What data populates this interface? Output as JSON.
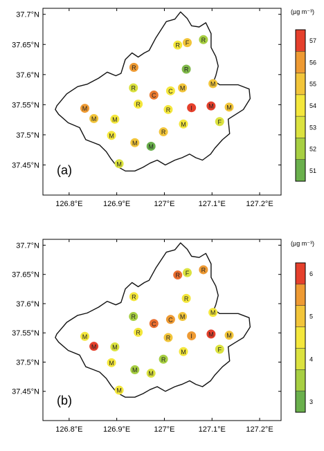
{
  "panels": [
    {
      "label": "(a)",
      "legend_title": "(µg m⁻³)",
      "legend": [
        {
          "label": "51",
          "color": "#6ab04c"
        },
        {
          "label": "52",
          "color": "#a7cf42"
        },
        {
          "label": "53",
          "color": "#dbe23f"
        },
        {
          "label": "54",
          "color": "#f4e73c"
        },
        {
          "label": "55",
          "color": "#f2c53a"
        },
        {
          "label": "56",
          "color": "#ee9a33"
        },
        {
          "label": "57",
          "color": "#e5402c"
        }
      ],
      "stations": [
        {
          "letter": "R",
          "lon": 127.028,
          "lat": 37.649,
          "color": "#f4e73c"
        },
        {
          "letter": "F",
          "lon": 127.048,
          "lat": 37.653,
          "color": "#f2c53a"
        },
        {
          "letter": "R",
          "lon": 127.082,
          "lat": 37.658,
          "color": "#a7cf42"
        },
        {
          "letter": "R",
          "lon": 126.936,
          "lat": 37.612,
          "color": "#ee9a33"
        },
        {
          "letter": "R",
          "lon": 127.046,
          "lat": 37.609,
          "color": "#80b94a"
        },
        {
          "letter": "R",
          "lon": 126.935,
          "lat": 37.578,
          "color": "#dbe23f"
        },
        {
          "letter": "C",
          "lon": 126.978,
          "lat": 37.566,
          "color": "#e97a30"
        },
        {
          "letter": "C",
          "lon": 127.013,
          "lat": 37.573,
          "color": "#f4e73c"
        },
        {
          "letter": "M",
          "lon": 127.038,
          "lat": 37.578,
          "color": "#f2c53a"
        },
        {
          "letter": "M",
          "lon": 127.102,
          "lat": 37.585,
          "color": "#f2c53a"
        },
        {
          "letter": "M",
          "lon": 126.833,
          "lat": 37.544,
          "color": "#ee9a33"
        },
        {
          "letter": "R",
          "lon": 126.945,
          "lat": 37.551,
          "color": "#f4e73c"
        },
        {
          "letter": "R",
          "lon": 127.008,
          "lat": 37.542,
          "color": "#f4e73c"
        },
        {
          "letter": "I",
          "lon": 127.057,
          "lat": 37.545,
          "color": "#e5402c"
        },
        {
          "letter": "M",
          "lon": 127.098,
          "lat": 37.548,
          "color": "#e5402c"
        },
        {
          "letter": "M",
          "lon": 127.136,
          "lat": 37.546,
          "color": "#f2c53a"
        },
        {
          "letter": "M",
          "lon": 126.852,
          "lat": 37.527,
          "color": "#f2c53a"
        },
        {
          "letter": "M",
          "lon": 126.896,
          "lat": 37.526,
          "color": "#f4e73c"
        },
        {
          "letter": "M",
          "lon": 127.04,
          "lat": 37.518,
          "color": "#f4e73c"
        },
        {
          "letter": "F",
          "lon": 127.116,
          "lat": 37.522,
          "color": "#dbe23f"
        },
        {
          "letter": "M",
          "lon": 126.889,
          "lat": 37.499,
          "color": "#f4e73c"
        },
        {
          "letter": "R",
          "lon": 126.998,
          "lat": 37.505,
          "color": "#f2c53a"
        },
        {
          "letter": "M",
          "lon": 126.938,
          "lat": 37.487,
          "color": "#f2c53a"
        },
        {
          "letter": "M",
          "lon": 126.972,
          "lat": 37.481,
          "color": "#6ab04c"
        },
        {
          "letter": "M",
          "lon": 126.905,
          "lat": 37.452,
          "color": "#dbe23f"
        }
      ]
    },
    {
      "label": "(b)",
      "legend_title": "(µg m⁻³)",
      "legend": [
        {
          "label": "3",
          "color": "#6ab04c"
        },
        {
          "label": "",
          "color": "#a7cf42"
        },
        {
          "label": "4",
          "color": "#dbe23f"
        },
        {
          "label": "",
          "color": "#f4e73c"
        },
        {
          "label": "5",
          "color": "#f2c53a"
        },
        {
          "label": "",
          "color": "#ee9a33"
        },
        {
          "label": "6",
          "color": "#e5402c"
        }
      ],
      "stations": [
        {
          "letter": "R",
          "lon": 127.028,
          "lat": 37.649,
          "color": "#ea6e30"
        },
        {
          "letter": "F",
          "lon": 127.048,
          "lat": 37.653,
          "color": "#dbe23f"
        },
        {
          "letter": "R",
          "lon": 127.082,
          "lat": 37.658,
          "color": "#ee9a33"
        },
        {
          "letter": "R",
          "lon": 126.936,
          "lat": 37.612,
          "color": "#f4e73c"
        },
        {
          "letter": "R",
          "lon": 127.046,
          "lat": 37.609,
          "color": "#f4e73c"
        },
        {
          "letter": "R",
          "lon": 126.935,
          "lat": 37.578,
          "color": "#a7cf42"
        },
        {
          "letter": "C",
          "lon": 126.978,
          "lat": 37.566,
          "color": "#ea6e30"
        },
        {
          "letter": "C",
          "lon": 127.013,
          "lat": 37.573,
          "color": "#ee9a33"
        },
        {
          "letter": "M",
          "lon": 127.038,
          "lat": 37.578,
          "color": "#f2c53a"
        },
        {
          "letter": "M",
          "lon": 127.102,
          "lat": 37.585,
          "color": "#f4e73c"
        },
        {
          "letter": "M",
          "lon": 126.833,
          "lat": 37.544,
          "color": "#f4e73c"
        },
        {
          "letter": "R",
          "lon": 126.945,
          "lat": 37.551,
          "color": "#f4e73c"
        },
        {
          "letter": "R",
          "lon": 127.008,
          "lat": 37.542,
          "color": "#f2c53a"
        },
        {
          "letter": "I",
          "lon": 127.057,
          "lat": 37.545,
          "color": "#ee9a33"
        },
        {
          "letter": "M",
          "lon": 127.098,
          "lat": 37.548,
          "color": "#e5402c"
        },
        {
          "letter": "M",
          "lon": 127.136,
          "lat": 37.546,
          "color": "#f2c53a"
        },
        {
          "letter": "M",
          "lon": 126.852,
          "lat": 37.527,
          "color": "#e5402c"
        },
        {
          "letter": "M",
          "lon": 126.896,
          "lat": 37.526,
          "color": "#dbe23f"
        },
        {
          "letter": "M",
          "lon": 127.04,
          "lat": 37.518,
          "color": "#f4e73c"
        },
        {
          "letter": "F",
          "lon": 127.116,
          "lat": 37.522,
          "color": "#dbe23f"
        },
        {
          "letter": "M",
          "lon": 126.889,
          "lat": 37.499,
          "color": "#f4e73c"
        },
        {
          "letter": "R",
          "lon": 126.998,
          "lat": 37.505,
          "color": "#a7cf42"
        },
        {
          "letter": "M",
          "lon": 126.938,
          "lat": 37.487,
          "color": "#a7cf42"
        },
        {
          "letter": "M",
          "lon": 126.972,
          "lat": 37.481,
          "color": "#dbe23f"
        },
        {
          "letter": "M",
          "lon": 126.905,
          "lat": 37.452,
          "color": "#f4e73c"
        }
      ]
    }
  ],
  "axis": {
    "x_ticks": [
      {
        "value": 126.8,
        "label": "126.8°E"
      },
      {
        "value": 126.9,
        "label": "126.9°E"
      },
      {
        "value": 127.0,
        "label": "127°E"
      },
      {
        "value": 127.1,
        "label": "127.1°E"
      },
      {
        "value": 127.2,
        "label": "127.2°E"
      }
    ],
    "y_ticks": [
      {
        "value": 37.45,
        "label": "37.45°N"
      },
      {
        "value": 37.5,
        "label": "37.5°N"
      },
      {
        "value": 37.55,
        "label": "37.55°N"
      },
      {
        "value": 37.6,
        "label": "37.6°N"
      },
      {
        "value": 37.65,
        "label": "37.65°N"
      },
      {
        "value": 37.7,
        "label": "37.7°N"
      }
    ],
    "lon_range": [
      126.745,
      127.245
    ],
    "lat_range": [
      37.4,
      37.71
    ]
  }
}
